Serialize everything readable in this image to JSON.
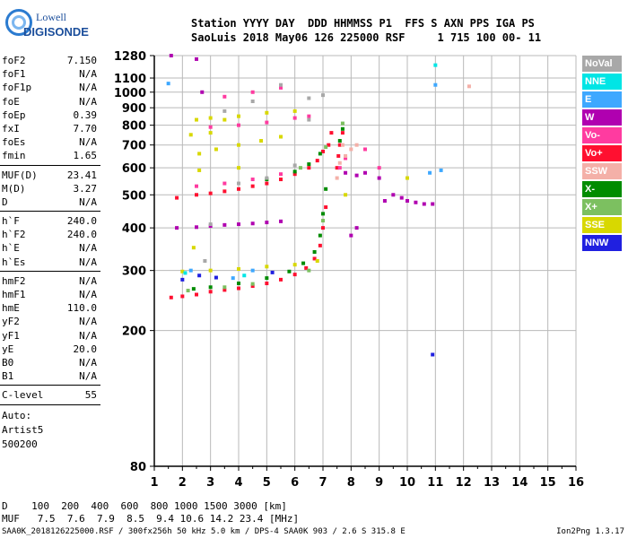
{
  "logo": {
    "line1": "Lowell",
    "line2": "DIGISONDE"
  },
  "header": {
    "row1": "Station YYYY DAY  DDD HHMMSS P1  FFS S AXN PPS IGA PS",
    "row2": "SaoLuis 2018 May06 126 225000 RSF     1 715 100 00- 11"
  },
  "params": {
    "group1": [
      {
        "k": "foF2",
        "v": "7.150"
      },
      {
        "k": "foF1",
        "v": "N/A"
      },
      {
        "k": "foF1p",
        "v": "N/A"
      },
      {
        "k": "foE",
        "v": "N/A"
      },
      {
        "k": "foEp",
        "v": "0.39"
      },
      {
        "k": "fxI",
        "v": "7.70"
      },
      {
        "k": "foEs",
        "v": "N/A"
      },
      {
        "k": "fmin",
        "v": "1.65"
      }
    ],
    "group2": [
      {
        "k": "MUF(D)",
        "v": "23.41"
      },
      {
        "k": "M(D)",
        "v": "3.27"
      },
      {
        "k": "D",
        "v": "N/A"
      }
    ],
    "group3": [
      {
        "k": "h`F",
        "v": "240.0"
      },
      {
        "k": "h`F2",
        "v": "240.0"
      },
      {
        "k": "h`E",
        "v": "N/A"
      },
      {
        "k": "h`Es",
        "v": "N/A"
      }
    ],
    "group4": [
      {
        "k": "hmF2",
        "v": "N/A"
      },
      {
        "k": "hmF1",
        "v": "N/A"
      },
      {
        "k": "hmE",
        "v": "110.0"
      },
      {
        "k": "yF2",
        "v": "N/A"
      },
      {
        "k": "yF1",
        "v": "N/A"
      },
      {
        "k": "yE",
        "v": "20.0"
      },
      {
        "k": "B0",
        "v": "N/A"
      },
      {
        "k": "B1",
        "v": "N/A"
      }
    ],
    "group5": [
      {
        "k": "C-level",
        "v": "55"
      }
    ]
  },
  "auto": {
    "l1": "Auto:",
    "l2": "Artist5",
    "l3": "500200"
  },
  "legend": [
    {
      "label": "NoVal",
      "color": "#a8a8a8"
    },
    {
      "label": "NNE",
      "color": "#00e5e5"
    },
    {
      "label": "E",
      "color": "#3ea8ff"
    },
    {
      "label": "W",
      "color": "#b000b0"
    },
    {
      "label": "Vo-",
      "color": "#ff3ba0"
    },
    {
      "label": "Vo+",
      "color": "#ff1030"
    },
    {
      "label": "SSW",
      "color": "#f4b0a8"
    },
    {
      "label": "X-",
      "color": "#008c00"
    },
    {
      "label": "X+",
      "color": "#7cc060"
    },
    {
      "label": "SSE",
      "color": "#d8d800"
    },
    {
      "label": "NNW",
      "color": "#2020e0"
    }
  ],
  "bottom": {
    "d_row": "D    100  200  400  600  800 1000 1500 3000 [km]",
    "muf_row": "MUF   7.5  7.6  7.9  8.5  9.4 10.6 14.2 23.4 [MHz]"
  },
  "footer": {
    "left": "SAA0K_2018126225000.RSF / 300fx256h 50 kHz 5.0 km / DPS-4 SAA0K 903 / 2.6 S 315.8 E",
    "right": "Ion2Png 1.3.17"
  },
  "chart_data": {
    "type": "scatter",
    "title": "",
    "xlabel": "",
    "ylabel": "",
    "xlim": [
      1,
      16
    ],
    "ylim": [
      80,
      1280
    ],
    "x_ticks": [
      "1",
      "2",
      "3",
      "4",
      "5",
      "6",
      "7",
      "8",
      "9",
      "10",
      "11",
      "12",
      "13",
      "14",
      "15",
      "16"
    ],
    "y_ticks": [
      {
        "v": 80,
        "label": "80"
      },
      {
        "v": 200,
        "label": "200"
      },
      {
        "v": 300,
        "label": "300"
      },
      {
        "v": 400,
        "label": "400"
      },
      {
        "v": 500,
        "label": "500"
      },
      {
        "v": 600,
        "label": "600"
      },
      {
        "v": 700,
        "label": "700"
      },
      {
        "v": 800,
        "label": "800"
      },
      {
        "v": 900,
        "label": "900"
      },
      {
        "v": 1000,
        "label": "1000"
      },
      {
        "v": 1100,
        "label": "1100"
      },
      {
        "v": 1280,
        "label": "1280"
      }
    ],
    "y_scale": "log",
    "grid": true,
    "series": [
      {
        "name": "Vo+",
        "color": "#ff1030",
        "points": [
          [
            1.6,
            250
          ],
          [
            2.0,
            252
          ],
          [
            2.5,
            255
          ],
          [
            3.0,
            260
          ],
          [
            3.5,
            263
          ],
          [
            4.0,
            266
          ],
          [
            4.5,
            270
          ],
          [
            5.0,
            275
          ],
          [
            5.5,
            282
          ],
          [
            6.0,
            292
          ],
          [
            6.4,
            305
          ],
          [
            6.7,
            325
          ],
          [
            6.9,
            355
          ],
          [
            7.0,
            400
          ],
          [
            7.1,
            460
          ],
          [
            7.5,
            600
          ],
          [
            7.55,
            650
          ],
          [
            7.6,
            700
          ],
          [
            7.7,
            760
          ],
          [
            1.8,
            490
          ],
          [
            2.5,
            500
          ],
          [
            3.0,
            505
          ],
          [
            3.5,
            512
          ],
          [
            4.0,
            520
          ],
          [
            4.5,
            530
          ],
          [
            5.0,
            540
          ],
          [
            5.5,
            555
          ],
          [
            6.0,
            575
          ],
          [
            6.5,
            600
          ],
          [
            6.8,
            630
          ],
          [
            7.0,
            670
          ],
          [
            7.2,
            700
          ],
          [
            7.3,
            760
          ]
        ]
      },
      {
        "name": "X-",
        "color": "#008c00",
        "points": [
          [
            2.4,
            265
          ],
          [
            3.0,
            268
          ],
          [
            4.0,
            275
          ],
          [
            5.0,
            285
          ],
          [
            5.8,
            298
          ],
          [
            6.3,
            315
          ],
          [
            6.7,
            340
          ],
          [
            6.9,
            380
          ],
          [
            7.0,
            440
          ],
          [
            7.1,
            520
          ],
          [
            7.6,
            720
          ],
          [
            7.7,
            780
          ],
          [
            5.0,
            555
          ],
          [
            6.0,
            585
          ],
          [
            6.5,
            615
          ],
          [
            6.9,
            660
          ]
        ]
      },
      {
        "name": "X+",
        "color": "#7cc060",
        "points": [
          [
            2.2,
            262
          ],
          [
            3.5,
            268
          ],
          [
            4.5,
            274
          ],
          [
            6.5,
            300
          ],
          [
            7.0,
            420
          ],
          [
            7.7,
            810
          ],
          [
            6.2,
            600
          ],
          [
            7.1,
            690
          ]
        ]
      },
      {
        "name": "SSE",
        "color": "#d8d800",
        "points": [
          [
            2.0,
            298
          ],
          [
            3.0,
            300
          ],
          [
            4.0,
            303
          ],
          [
            5.0,
            308
          ],
          [
            6.0,
            312
          ],
          [
            6.8,
            320
          ],
          [
            2.6,
            660
          ],
          [
            3.2,
            680
          ],
          [
            4.0,
            700
          ],
          [
            4.8,
            720
          ],
          [
            5.5,
            740
          ],
          [
            2.3,
            750
          ],
          [
            3.0,
            760
          ],
          [
            2.5,
            830
          ],
          [
            3.0,
            840
          ],
          [
            3.5,
            830
          ],
          [
            4.0,
            850
          ],
          [
            5.0,
            870
          ],
          [
            6.0,
            880
          ],
          [
            2.6,
            590
          ],
          [
            4.0,
            600
          ],
          [
            2.4,
            350
          ],
          [
            7.8,
            500
          ],
          [
            10.0,
            560
          ]
        ]
      },
      {
        "name": "W",
        "color": "#b000b0",
        "points": [
          [
            1.8,
            400
          ],
          [
            2.5,
            402
          ],
          [
            3.0,
            405
          ],
          [
            3.5,
            408
          ],
          [
            4.0,
            410
          ],
          [
            4.5,
            412
          ],
          [
            5.0,
            415
          ],
          [
            5.5,
            418
          ],
          [
            8.2,
            570
          ],
          [
            8.5,
            580
          ],
          [
            9.0,
            560
          ],
          [
            9.5,
            500
          ],
          [
            9.8,
            490
          ],
          [
            10.0,
            480
          ],
          [
            10.3,
            475
          ],
          [
            10.6,
            470
          ],
          [
            10.9,
            470
          ],
          [
            9.2,
            480
          ],
          [
            7.8,
            580
          ],
          [
            8.0,
            380
          ],
          [
            8.2,
            400
          ],
          [
            1.6,
            1280
          ],
          [
            2.5,
            1250
          ],
          [
            2.7,
            1000
          ]
        ]
      },
      {
        "name": "Vo-",
        "color": "#ff3ba0",
        "points": [
          [
            2.5,
            530
          ],
          [
            3.5,
            540
          ],
          [
            4.5,
            555
          ],
          [
            5.5,
            575
          ],
          [
            3.0,
            790
          ],
          [
            4.0,
            800
          ],
          [
            5.0,
            815
          ],
          [
            6.0,
            840
          ],
          [
            6.5,
            850
          ],
          [
            3.5,
            970
          ],
          [
            4.5,
            1000
          ],
          [
            5.5,
            1030
          ],
          [
            7.6,
            600
          ],
          [
            7.8,
            640
          ],
          [
            8.5,
            680
          ],
          [
            9.0,
            600
          ]
        ]
      },
      {
        "name": "SSW",
        "color": "#f4b0a8",
        "points": [
          [
            7.6,
            620
          ],
          [
            7.8,
            650
          ],
          [
            8.0,
            680
          ],
          [
            7.7,
            700
          ],
          [
            7.5,
            560
          ],
          [
            8.2,
            700
          ],
          [
            12.2,
            1040
          ]
        ]
      },
      {
        "name": "E",
        "color": "#3ea8ff",
        "points": [
          [
            1.5,
            1060
          ],
          [
            2.3,
            300
          ],
          [
            3.8,
            285
          ],
          [
            4.5,
            300
          ],
          [
            11.0,
            1050
          ],
          [
            10.8,
            580
          ],
          [
            11.2,
            590
          ]
        ]
      },
      {
        "name": "NNE",
        "color": "#00e5e5",
        "points": [
          [
            11.0,
            1200
          ],
          [
            2.1,
            295
          ],
          [
            4.2,
            290
          ]
        ]
      },
      {
        "name": "NNW",
        "color": "#2020e0",
        "points": [
          [
            2.0,
            282
          ],
          [
            2.6,
            290
          ],
          [
            3.2,
            286
          ],
          [
            5.2,
            296
          ],
          [
            10.9,
            170
          ]
        ]
      },
      {
        "name": "NoVal",
        "color": "#a8a8a8",
        "points": [
          [
            3.0,
            410
          ],
          [
            4.0,
            540
          ],
          [
            5.0,
            560
          ],
          [
            6.0,
            610
          ],
          [
            6.5,
            830
          ],
          [
            7.0,
            980
          ],
          [
            5.5,
            1050
          ],
          [
            4.5,
            940
          ],
          [
            6.5,
            960
          ],
          [
            3.5,
            880
          ],
          [
            2.8,
            320
          ]
        ]
      }
    ]
  }
}
